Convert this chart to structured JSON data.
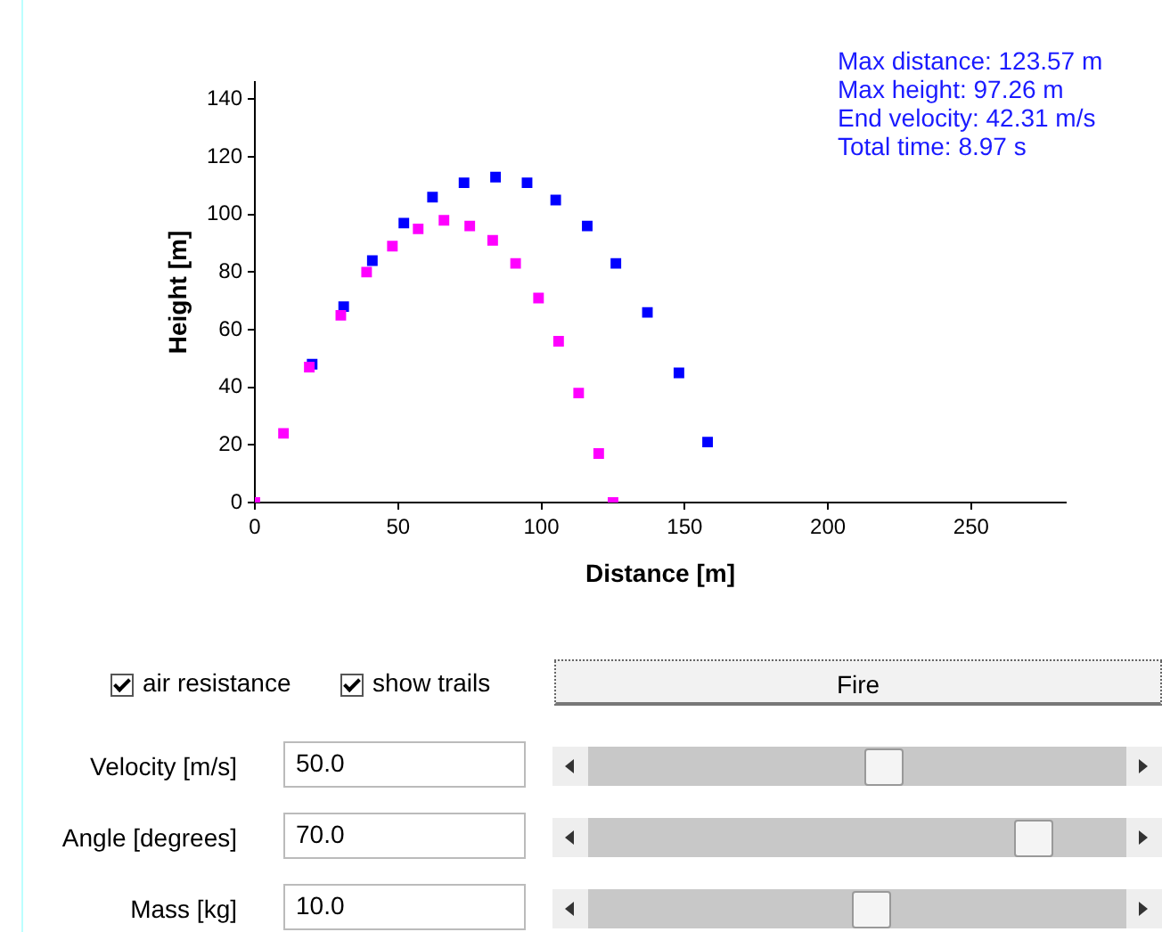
{
  "chart_data": {
    "type": "scatter",
    "xlabel": "Distance [m]",
    "ylabel": "Height [m]",
    "marker": "square",
    "legend": false,
    "xlim": [
      0,
      283
    ],
    "xticks": [
      0,
      50,
      100,
      150,
      200,
      250
    ],
    "ylim": [
      0,
      146
    ],
    "yticks": [
      0,
      20,
      40,
      60,
      80,
      100,
      120,
      140
    ],
    "series": [
      {
        "color": "#0000ff",
        "x": [
          20,
          31,
          41,
          52,
          62,
          73,
          84,
          95,
          105,
          116,
          126,
          137,
          148,
          158
        ],
        "values": [
          48,
          68,
          84,
          97,
          106,
          111,
          113,
          111,
          105,
          96,
          83,
          66,
          45,
          21
        ]
      },
      {
        "color": "#ff00ff",
        "x": [
          0,
          10,
          19,
          30,
          39,
          48,
          57,
          66,
          75,
          83,
          91,
          99,
          106,
          113,
          120,
          125
        ],
        "values": [
          0,
          24,
          47,
          65,
          80,
          89,
          95,
          98,
          96,
          91,
          83,
          71,
          56,
          38,
          17,
          0
        ]
      }
    ],
    "annotations": [
      "Max distance: 123.57 m",
      "Max height: 97.26 m",
      "End velocity: 42.31 m/s",
      "Total time: 8.97 s",
      "air resistance",
      "show trails",
      "Fire",
      "Velocity [m/s]",
      "50.0",
      "Angle [degrees]",
      "70.0",
      "Mass [kg]",
      "10.0"
    ]
  }
}
